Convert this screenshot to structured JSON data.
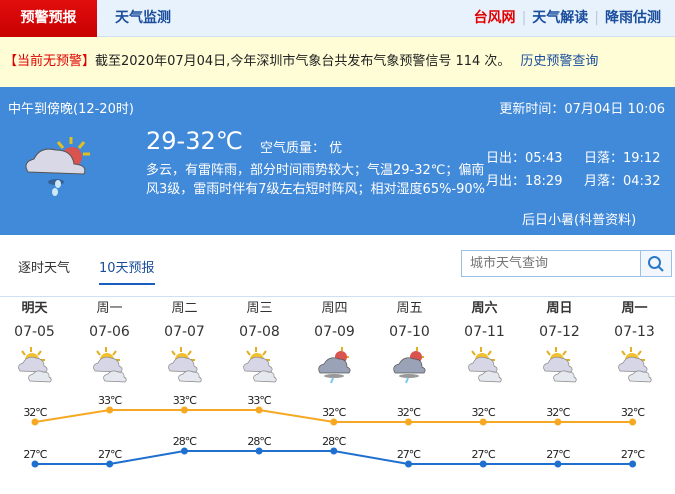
{
  "nav": {
    "active": "预警预报",
    "monitor": "天气监测",
    "typhoon": "台风网",
    "interpret": "天气解读",
    "rain": "降雨估测"
  },
  "alert": {
    "status": "【当前无预警】",
    "text": "截至2020年07月04日,今年深圳市气象台共发布气象预警信号 114 次。",
    "history": "历史预警查询"
  },
  "current": {
    "period": "中午到傍晚(12-20时)",
    "updated": "更新时间：07月04日 10:06",
    "temp": "29-32℃",
    "air": "空气质量： 优",
    "desc": "多云，有雷阵雨，部分时间雨势较大；气温29-32℃；偏南风3级，雷雨时伴有7级左右短时阵风；相对湿度65%-90%",
    "sunrise": "日出：05:43",
    "sunset": "日落：19:12",
    "moonrise": "月出：18:29",
    "moonset": "月落：04:32",
    "tip": "后日小暑(科普资料)",
    "icon": "cloud-sun-rain-icon"
  },
  "tabs": {
    "hourly": "逐时天气",
    "tenday": "10天预报"
  },
  "search": {
    "placeholder": "城市天气查询",
    "icon": "search-icon"
  },
  "forecast": [
    {
      "day": "明天",
      "date": "07-05",
      "icon": "partly-cloudy",
      "high": "32℃",
      "low": "27℃"
    },
    {
      "day": "周一",
      "date": "07-06",
      "icon": "partly-cloudy",
      "high": "33℃",
      "low": "27℃"
    },
    {
      "day": "周二",
      "date": "07-07",
      "icon": "partly-cloudy",
      "high": "33℃",
      "low": "28℃"
    },
    {
      "day": "周三",
      "date": "07-08",
      "icon": "partly-cloudy",
      "high": "33℃",
      "low": "28℃"
    },
    {
      "day": "周四",
      "date": "07-09",
      "icon": "thunder-shower",
      "high": "32℃",
      "low": "28℃"
    },
    {
      "day": "周五",
      "date": "07-10",
      "icon": "thunder-shower",
      "high": "32℃",
      "low": "27℃"
    },
    {
      "day": "周六",
      "date": "07-11",
      "icon": "partly-cloudy",
      "high": "32℃",
      "low": "27℃"
    },
    {
      "day": "周日",
      "date": "07-12",
      "icon": "partly-cloudy",
      "high": "32℃",
      "low": "27℃"
    },
    {
      "day": "周一",
      "date": "07-13",
      "icon": "partly-cloudy",
      "high": "32℃",
      "low": "27℃"
    }
  ],
  "colors": {
    "high": "#f7a823",
    "low": "#1f6fcf",
    "panel": "#4189d9",
    "alert_red": "#e00000"
  }
}
